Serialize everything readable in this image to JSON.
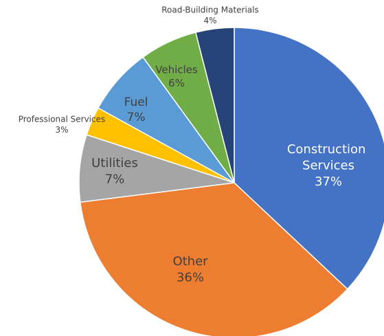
{
  "chart_data": {
    "type": "pie",
    "categories": [
      "Construction Services",
      "Other",
      "Utilities",
      "Professional Services",
      "Fuel",
      "Vehicles",
      "Road-Building Materials"
    ],
    "values": [
      37,
      36,
      7,
      3,
      7,
      6,
      4
    ],
    "value_labels": [
      "37%",
      "36%",
      "7%",
      "3%",
      "7%",
      "6%",
      "4%"
    ],
    "colors": [
      "#4472c4",
      "#ed7d31",
      "#a5a5a5",
      "#ffc000",
      "#5b9bd5",
      "#70ad47",
      "#264478"
    ],
    "start_angle": 0,
    "direction": "clockwise"
  }
}
